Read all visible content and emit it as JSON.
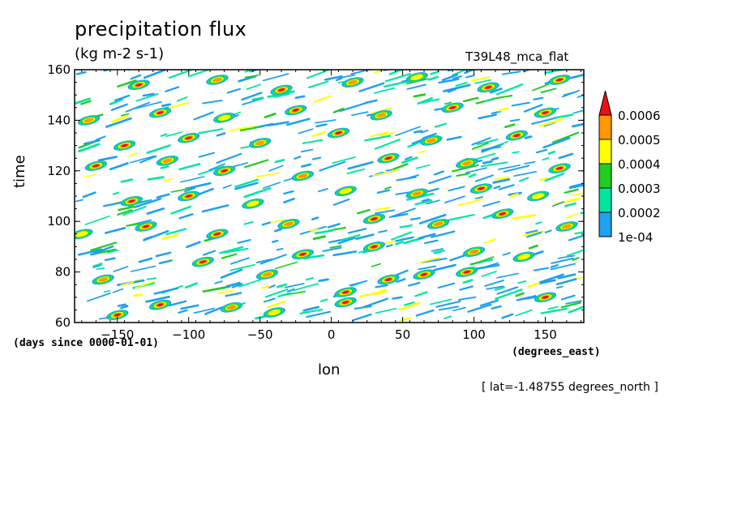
{
  "chart_data": {
    "type": "heatmap",
    "title": "precipitation flux",
    "units": "(kg m-2 s-1)",
    "dataset": "T39L48_mca_flat",
    "xlabel": "lon",
    "ylabel": "time",
    "xunits": "(degrees_east)",
    "yunits": "(days since 0000-01-01)",
    "note": "[ lat=-1.48755 degrees_north ]",
    "xlim": [
      -180,
      177
    ],
    "ylim": [
      60,
      160
    ],
    "xticks": [
      -150,
      -100,
      -50,
      0,
      50,
      100,
      150
    ],
    "yticks": [
      60,
      80,
      100,
      120,
      140,
      160
    ],
    "colorbar": {
      "levels": [
        "1e-04",
        "0.0002",
        "0.0003",
        "0.0004",
        "0.0005",
        "0.0006"
      ],
      "colors": [
        "#1fa0f0",
        "#00e6a0",
        "#22cc22",
        "#ffff00",
        "#ff9900",
        "#ee1111"
      ],
      "extend": "max"
    },
    "cells": [
      {
        "lon": -150,
        "time": 63,
        "v": 0.0006
      },
      {
        "lon": -120,
        "time": 67,
        "v": 0.0006
      },
      {
        "lon": -70,
        "time": 66,
        "v": 0.0005
      },
      {
        "lon": -40,
        "time": 64,
        "v": 0.0004
      },
      {
        "lon": 10,
        "time": 68,
        "v": 0.0006
      },
      {
        "lon": 10,
        "time": 72,
        "v": 0.0006
      },
      {
        "lon": 40,
        "time": 77,
        "v": 0.0006
      },
      {
        "lon": 65,
        "time": 79,
        "v": 0.0006
      },
      {
        "lon": 95,
        "time": 80,
        "v": 0.0006
      },
      {
        "lon": 150,
        "time": 70,
        "v": 0.0006
      },
      {
        "lon": -160,
        "time": 77,
        "v": 0.0005
      },
      {
        "lon": -90,
        "time": 84,
        "v": 0.0006
      },
      {
        "lon": -45,
        "time": 79,
        "v": 0.0005
      },
      {
        "lon": -20,
        "time": 87,
        "v": 0.0006
      },
      {
        "lon": 30,
        "time": 90,
        "v": 0.0006
      },
      {
        "lon": 100,
        "time": 88,
        "v": 0.0005
      },
      {
        "lon": 135,
        "time": 86,
        "v": 0.0004
      },
      {
        "lon": -175,
        "time": 95,
        "v": 0.0004
      },
      {
        "lon": -130,
        "time": 98,
        "v": 0.0006
      },
      {
        "lon": -80,
        "time": 95,
        "v": 0.0006
      },
      {
        "lon": -30,
        "time": 99,
        "v": 0.0005
      },
      {
        "lon": 30,
        "time": 101,
        "v": 0.0006
      },
      {
        "lon": 75,
        "time": 99,
        "v": 0.0005
      },
      {
        "lon": 120,
        "time": 103,
        "v": 0.0006
      },
      {
        "lon": 165,
        "time": 98,
        "v": 0.0005
      },
      {
        "lon": -140,
        "time": 108,
        "v": 0.0006
      },
      {
        "lon": -100,
        "time": 110,
        "v": 0.0006
      },
      {
        "lon": -55,
        "time": 107,
        "v": 0.0004
      },
      {
        "lon": 10,
        "time": 112,
        "v": 0.0004
      },
      {
        "lon": 60,
        "time": 111,
        "v": 0.0005
      },
      {
        "lon": 105,
        "time": 113,
        "v": 0.0006
      },
      {
        "lon": 145,
        "time": 110,
        "v": 0.0004
      },
      {
        "lon": -165,
        "time": 122,
        "v": 0.0006
      },
      {
        "lon": -115,
        "time": 124,
        "v": 0.0005
      },
      {
        "lon": -75,
        "time": 120,
        "v": 0.0006
      },
      {
        "lon": -20,
        "time": 118,
        "v": 0.0005
      },
      {
        "lon": 40,
        "time": 125,
        "v": 0.0006
      },
      {
        "lon": 95,
        "time": 123,
        "v": 0.0005
      },
      {
        "lon": 160,
        "time": 121,
        "v": 0.0006
      },
      {
        "lon": -145,
        "time": 130,
        "v": 0.0006
      },
      {
        "lon": -100,
        "time": 133,
        "v": 0.0006
      },
      {
        "lon": -50,
        "time": 131,
        "v": 0.0005
      },
      {
        "lon": 5,
        "time": 135,
        "v": 0.0006
      },
      {
        "lon": 70,
        "time": 132,
        "v": 0.0005
      },
      {
        "lon": 130,
        "time": 134,
        "v": 0.0006
      },
      {
        "lon": -170,
        "time": 140,
        "v": 0.0005
      },
      {
        "lon": -120,
        "time": 143,
        "v": 0.0006
      },
      {
        "lon": -75,
        "time": 141,
        "v": 0.0004
      },
      {
        "lon": -25,
        "time": 144,
        "v": 0.0006
      },
      {
        "lon": 35,
        "time": 142,
        "v": 0.0005
      },
      {
        "lon": 85,
        "time": 145,
        "v": 0.0006
      },
      {
        "lon": 150,
        "time": 143,
        "v": 0.0006
      },
      {
        "lon": -135,
        "time": 154,
        "v": 0.0006
      },
      {
        "lon": -80,
        "time": 156,
        "v": 0.0005
      },
      {
        "lon": -35,
        "time": 152,
        "v": 0.0006
      },
      {
        "lon": 15,
        "time": 155,
        "v": 0.0005
      },
      {
        "lon": 60,
        "time": 157,
        "v": 0.0004
      },
      {
        "lon": 110,
        "time": 153,
        "v": 0.0006
      },
      {
        "lon": 160,
        "time": 156,
        "v": 0.0006
      }
    ]
  }
}
